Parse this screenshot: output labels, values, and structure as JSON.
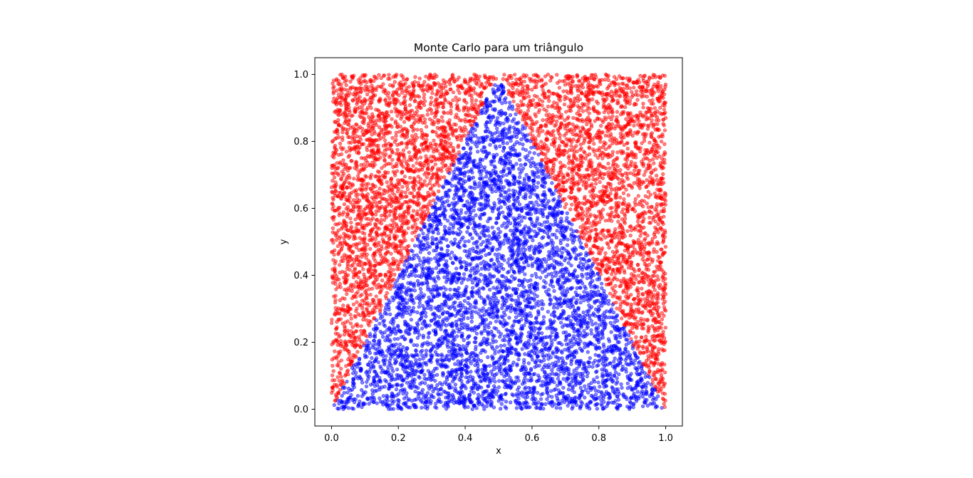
{
  "chart_data": {
    "type": "scatter",
    "title": "Monte Carlo para um triângulo",
    "xlabel": "x",
    "ylabel": "y",
    "xlim": [
      -0.05,
      1.05
    ],
    "ylim": [
      -0.05,
      1.05
    ],
    "x_ticks": [
      "0.0",
      "0.2",
      "0.4",
      "0.6",
      "0.8",
      "1.0"
    ],
    "y_ticks": [
      "0.0",
      "0.2",
      "0.4",
      "0.6",
      "0.8",
      "1.0"
    ],
    "x_tick_values": [
      0.0,
      0.2,
      0.4,
      0.6,
      0.8,
      1.0
    ],
    "y_tick_values": [
      0.0,
      0.2,
      0.4,
      0.6,
      0.8,
      1.0
    ],
    "grid": false,
    "legend": "none",
    "sample_region": {
      "x": [
        0,
        1
      ],
      "y": [
        0,
        1
      ]
    },
    "triangle_vertices": [
      [
        0,
        0
      ],
      [
        0.5,
        1
      ],
      [
        1,
        0
      ]
    ],
    "series": [
      {
        "role": "inside",
        "color": "#0000ff",
        "opacity": 0.5,
        "approx_count": 5000
      },
      {
        "role": "outside",
        "color": "#ff0000",
        "opacity": 0.5,
        "approx_count": 5000
      }
    ]
  }
}
